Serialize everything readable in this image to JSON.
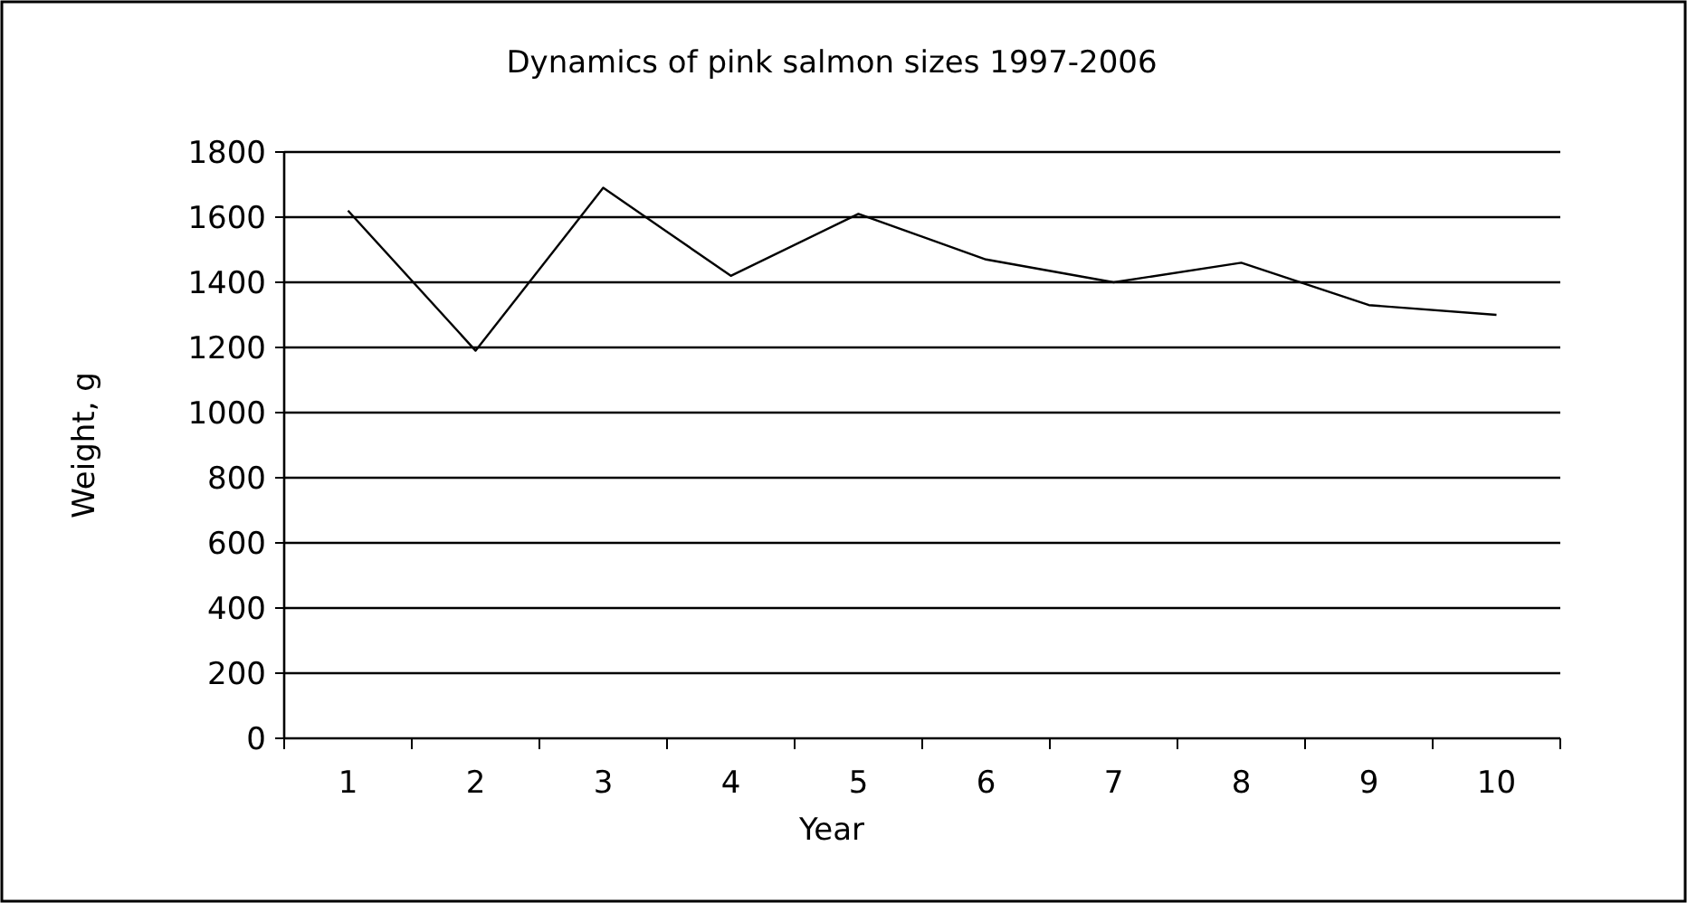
{
  "chart_data": {
    "type": "line",
    "title": "Dynamics of pink salmon sizes 1997-2006",
    "xlabel": "Year",
    "ylabel": "Weight, g",
    "categories": [
      "1",
      "2",
      "3",
      "4",
      "5",
      "6",
      "7",
      "8",
      "9",
      "10"
    ],
    "series": [
      {
        "color": "#000000",
        "values": [
          1620,
          1190,
          1690,
          1420,
          1610,
          1470,
          1400,
          1460,
          1330,
          1300
        ]
      }
    ],
    "ylim": [
      0,
      1800
    ],
    "yticks": [
      0,
      200,
      400,
      600,
      800,
      1000,
      1200,
      1400,
      1600,
      1800
    ],
    "grid": "y",
    "marker": "none",
    "line_style": "solid"
  }
}
